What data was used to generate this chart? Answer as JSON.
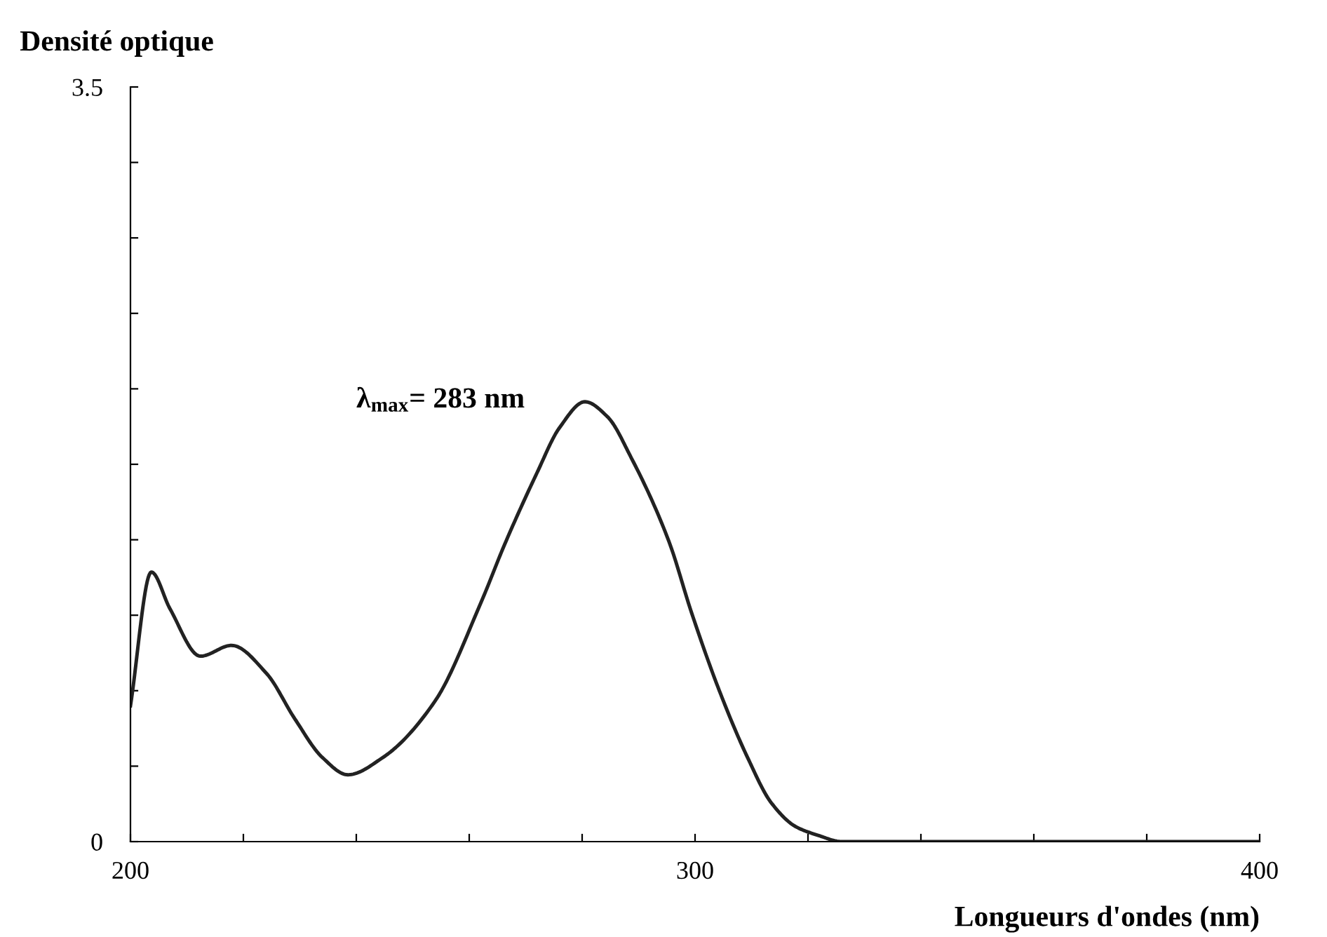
{
  "chart_data": {
    "type": "line",
    "xlabel": "Longueurs d'ondes (nm)",
    "ylabel": "Densité optique",
    "annotations": [
      "λ$_{max}$= 283 nm"
    ],
    "x": [
      200,
      203.7,
      207,
      212.4,
      217.9,
      224.1,
      229.1,
      234,
      238.5,
      244.7,
      253.9,
      262.1,
      266.3,
      272,
      276,
      280.5,
      284.5,
      288.7,
      295.4,
      299.4,
      304.3,
      309.3,
      313.5,
      317.8,
      321.7,
      326,
      340,
      360,
      380,
      400
    ],
    "series": [
      {
        "color": "#222222",
        "values": [
          0.63,
          1.25,
          1.08,
          0.86,
          0.91,
          0.78,
          0.57,
          0.39,
          0.31,
          0.39,
          0.65,
          1.11,
          1.38,
          1.71,
          1.92,
          2.04,
          1.97,
          1.78,
          1.39,
          1.06,
          0.7,
          0.39,
          0.18,
          0.07,
          0.03,
          0.0,
          0.0,
          0.0,
          0.0,
          0.0
        ]
      }
    ],
    "xlim": [
      200,
      400
    ],
    "ylim": [
      0,
      3.5
    ],
    "xticks": [
      200,
      {
        "value": 220,
        "label": null
      },
      {
        "value": 240,
        "label": null
      },
      {
        "value": 260,
        "label": null
      },
      {
        "value": 280,
        "label": null
      },
      300,
      {
        "value": 320,
        "label": null
      },
      {
        "value": 340,
        "label": null
      },
      {
        "value": 360,
        "label": null
      },
      {
        "value": 380,
        "label": null
      },
      400
    ],
    "yticks": [
      0,
      {
        "value": 0.35,
        "label": null
      },
      {
        "value": 0.7,
        "label": null
      },
      {
        "value": 1.05,
        "label": null
      },
      {
        "value": 1.4,
        "label": null
      },
      {
        "value": 1.75,
        "label": null
      },
      {
        "value": 2.1,
        "label": null
      },
      {
        "value": 2.45,
        "label": null
      },
      {
        "value": 2.8,
        "label": null
      },
      {
        "value": 3.15,
        "label": null
      },
      3.5
    ],
    "grid": false,
    "marker": "none",
    "line_style": "solid"
  }
}
